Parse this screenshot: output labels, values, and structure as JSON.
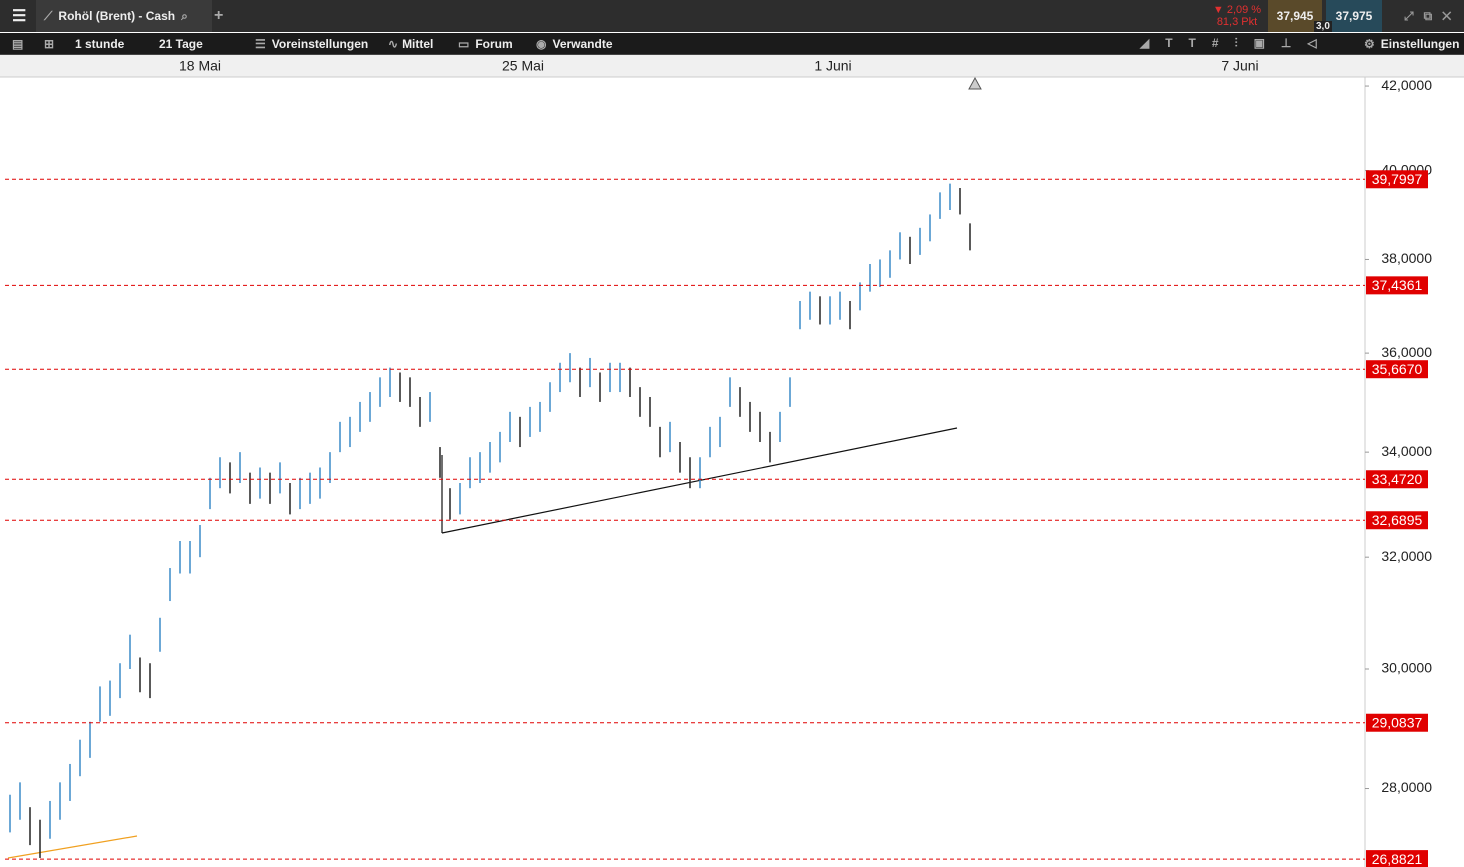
{
  "header": {
    "title": "Rohöl (Brent) - Cash",
    "change_pct": "▼ 2,09 %",
    "change_pts": "81,3 Pkt",
    "bid": "37,945",
    "ask": "37,975",
    "spread": "3,0"
  },
  "toolbar": {
    "interval": "1 stunde",
    "range": "21 Tage",
    "presets": "Voreinstellungen",
    "average": "Mittel",
    "forum": "Forum",
    "related": "Verwandte",
    "settings": "Einstellungen"
  },
  "chart_data": {
    "type": "hilo",
    "log_scale": true,
    "up_color": "#3a8ac9",
    "down_color": "#222222",
    "level_color": "#e00000",
    "high": [
      27.9,
      28.1,
      27.7,
      27.5,
      27.8,
      28.1,
      28.4,
      28.8,
      29.1,
      29.7,
      29.8,
      30.1,
      30.6,
      30.2,
      30.1,
      30.9,
      31.8,
      32.3,
      32.3,
      32.6,
      33.5,
      33.9,
      33.8,
      34.0,
      33.6,
      33.7,
      33.6,
      33.8,
      33.4,
      33.5,
      33.6,
      33.7,
      34.0,
      34.6,
      34.7,
      35.0,
      35.2,
      35.5,
      35.7,
      35.6,
      35.5,
      35.1,
      35.2,
      34.1,
      33.3,
      33.4,
      33.9,
      34.0,
      34.2,
      34.4,
      34.8,
      34.7,
      34.9,
      35.0,
      35.4,
      35.8,
      36.0,
      35.7,
      35.9,
      35.6,
      35.8,
      35.8,
      35.7,
      35.3,
      35.1,
      34.5,
      34.6,
      34.2,
      33.9,
      33.9,
      34.5,
      34.7,
      35.5,
      35.3,
      35.0,
      34.8,
      34.4,
      34.8,
      35.5,
      37.1,
      37.3,
      37.2,
      37.2,
      37.3,
      37.1,
      37.5,
      37.9,
      38.0,
      38.2,
      38.6,
      38.5,
      38.7,
      39.0,
      39.5,
      39.7,
      39.6,
      38.8
    ],
    "low": [
      27.3,
      27.5,
      27.1,
      26.9,
      27.2,
      27.5,
      27.8,
      28.2,
      28.5,
      29.1,
      29.2,
      29.5,
      30.0,
      29.6,
      29.5,
      30.3,
      31.2,
      31.7,
      31.7,
      32.0,
      32.9,
      33.3,
      33.2,
      33.4,
      33.0,
      33.1,
      33.0,
      33.2,
      32.8,
      32.9,
      33.0,
      33.1,
      33.4,
      34.0,
      34.1,
      34.4,
      34.6,
      34.9,
      35.1,
      35.0,
      34.9,
      34.5,
      34.6,
      33.5,
      32.7,
      32.8,
      33.3,
      33.4,
      33.6,
      33.8,
      34.2,
      34.1,
      34.3,
      34.4,
      34.8,
      35.2,
      35.4,
      35.1,
      35.3,
      35.0,
      35.2,
      35.2,
      35.1,
      34.7,
      34.5,
      33.9,
      34.0,
      33.6,
      33.3,
      33.3,
      33.9,
      34.1,
      34.9,
      34.7,
      34.4,
      34.2,
      33.8,
      34.2,
      34.9,
      36.5,
      36.7,
      36.6,
      36.6,
      36.7,
      36.5,
      36.9,
      37.3,
      37.4,
      37.6,
      38.0,
      37.9,
      38.1,
      38.4,
      38.9,
      39.1,
      39.0,
      38.2
    ],
    "xlim": [
      -0.5,
      135.5
    ],
    "xticks": [
      {
        "value": 19,
        "label": "18 Mai"
      },
      {
        "value": 51.3,
        "label": "25 Mai"
      },
      {
        "value": 82.3,
        "label": "1 Juni"
      },
      {
        "value": 123,
        "label": "7 Juni"
      }
    ],
    "ylim": [
      26.76,
      42.22
    ],
    "yticks": [
      {
        "value": 42,
        "label": "42,0000"
      },
      {
        "value": 40,
        "label": "40,0000"
      },
      {
        "value": 38,
        "label": "38,0000"
      },
      {
        "value": 36,
        "label": "36,0000"
      },
      {
        "value": 34,
        "label": "34,0000"
      },
      {
        "value": 32,
        "label": "32,0000"
      },
      {
        "value": 30,
        "label": "30,0000"
      },
      {
        "value": 28,
        "label": "28,0000"
      }
    ],
    "levels": [
      {
        "value": 39.7997,
        "label": "39,7997"
      },
      {
        "value": 37.4361,
        "label": "37,4361"
      },
      {
        "value": 35.667,
        "label": "35,6670"
      },
      {
        "value": 33.472,
        "label": "33,4720"
      },
      {
        "value": 32.6895,
        "label": "32,6895"
      },
      {
        "value": 29.0837,
        "label": "29,0837"
      },
      {
        "value": 26.8821,
        "label": "26,8821"
      }
    ]
  }
}
